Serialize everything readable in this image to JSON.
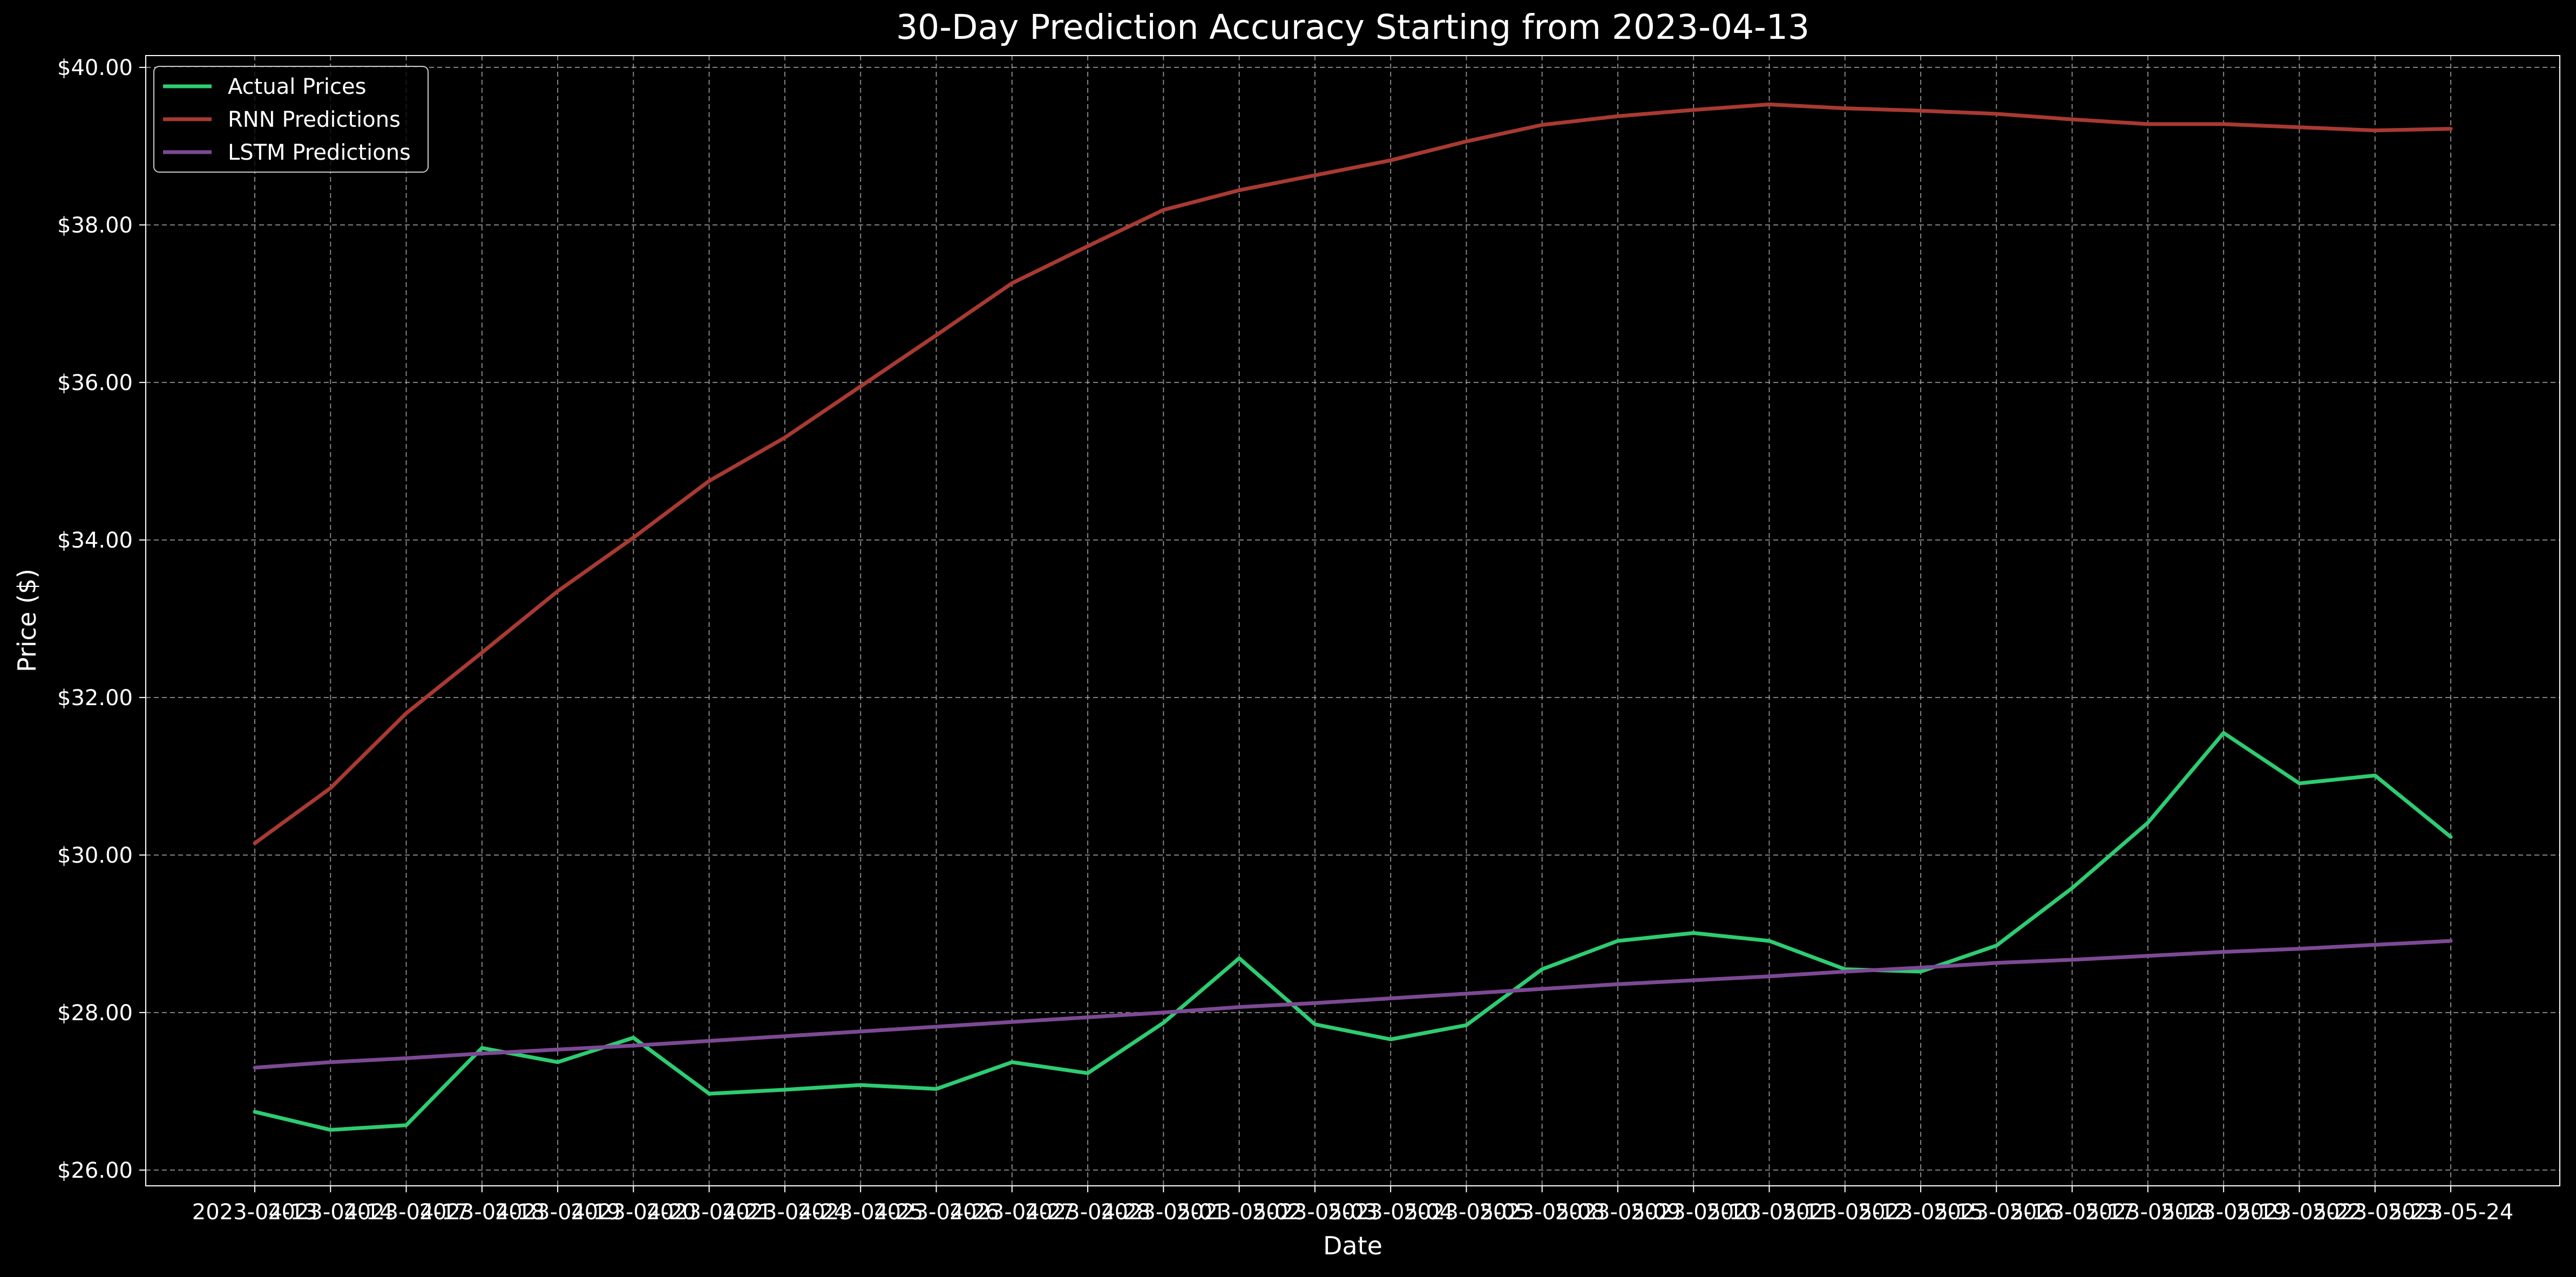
{
  "chart_data": {
    "type": "line",
    "title": "30-Day Prediction Accuracy Starting from 2023-04-13",
    "xlabel": "Date",
    "ylabel": "Price ($)",
    "ylim": [
      25.8,
      40.15
    ],
    "yticks": [
      "$26.00",
      "$28.00",
      "$30.00",
      "$32.00",
      "$34.00",
      "$36.00",
      "$38.00",
      "$40.00"
    ],
    "ytick_values": [
      26,
      28,
      30,
      32,
      34,
      36,
      38,
      40
    ],
    "grid": true,
    "legend_position": "top-left",
    "x": [
      "2023-04-13",
      "2023-04-14",
      "2023-04-17",
      "2023-04-18",
      "2023-04-19",
      "2023-04-20",
      "2023-04-21",
      "2023-04-24",
      "2023-04-25",
      "2023-04-26",
      "2023-04-27",
      "2023-04-28",
      "2023-05-01",
      "2023-05-02",
      "2023-05-03",
      "2023-05-04",
      "2023-05-05",
      "2023-05-08",
      "2023-05-09",
      "2023-05-10",
      "2023-05-11",
      "2023-05-12",
      "2023-05-15",
      "2023-05-16",
      "2023-05-17",
      "2023-05-18",
      "2023-05-19",
      "2023-05-22",
      "2023-05-23",
      "2023-05-24"
    ],
    "series": [
      {
        "name": "Actual Prices",
        "color": "#2ecc71",
        "values": [
          26.74,
          26.51,
          26.57,
          27.55,
          27.37,
          27.68,
          26.97,
          27.02,
          27.08,
          27.03,
          27.37,
          27.23,
          27.87,
          28.69,
          27.85,
          27.66,
          27.84,
          28.55,
          28.91,
          29.01,
          28.91,
          28.55,
          28.52,
          28.85,
          29.58,
          30.41,
          31.55,
          30.91,
          31.01,
          30.23
        ]
      },
      {
        "name": "RNN Predictions",
        "color": "#a83a32",
        "values": [
          30.15,
          30.85,
          31.8,
          32.57,
          33.35,
          34.03,
          34.75,
          35.3,
          35.95,
          36.6,
          37.26,
          37.73,
          38.19,
          38.44,
          38.63,
          38.82,
          39.06,
          39.27,
          39.38,
          39.46,
          39.53,
          39.48,
          39.45,
          39.41,
          39.34,
          39.28,
          39.28,
          39.24,
          39.2,
          39.22
        ]
      },
      {
        "name": "LSTM Predictions",
        "color": "#7d4994",
        "values": [
          27.3,
          27.37,
          27.42,
          27.48,
          27.53,
          27.58,
          27.64,
          27.7,
          27.76,
          27.82,
          27.88,
          27.94,
          28.0,
          28.07,
          28.12,
          28.18,
          28.24,
          28.3,
          28.36,
          28.41,
          28.46,
          28.52,
          28.57,
          28.63,
          28.67,
          28.72,
          28.77,
          28.81,
          28.86,
          28.91
        ]
      }
    ]
  }
}
